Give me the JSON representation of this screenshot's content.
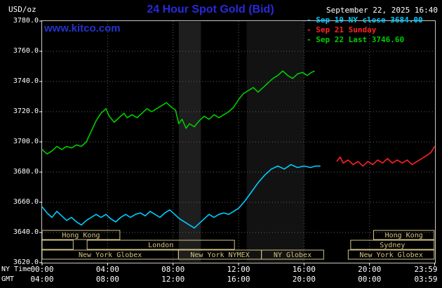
{
  "header": {
    "site": "www.kitco.com",
    "datetime": "September 22, 2025 16:40"
  },
  "chart_data": {
    "type": "line",
    "title": "24 Hour Spot Gold (Bid)",
    "ylabel": "USD/oz",
    "ylim": [
      3620,
      3780
    ],
    "ytick_step": 20,
    "x_hours": [
      0,
      24
    ],
    "grid_hours": [
      4,
      8,
      12,
      16,
      20
    ],
    "x_row_names": [
      "NY Time",
      "GMT"
    ],
    "xticks": [
      {
        "h": 0,
        "ny": "00:00",
        "gmt": "04:00"
      },
      {
        "h": 4,
        "ny": "04:00",
        "gmt": "08:00"
      },
      {
        "h": 8,
        "ny": "08:00",
        "gmt": "12:00"
      },
      {
        "h": 12,
        "ny": "12:00",
        "gmt": "16:00"
      },
      {
        "h": 16,
        "ny": "16:00",
        "gmt": "20:00"
      },
      {
        "h": 20,
        "ny": "20:00",
        "gmt": "00:00"
      },
      {
        "h": 23.98,
        "ny": "23:59",
        "gmt": "03:59"
      }
    ],
    "legend": [
      {
        "text": "- Sep 19 NY close 3684.00",
        "color": "#00ccff"
      },
      {
        "text": "- Sep 21 Sunday",
        "color": "#ff2222"
      },
      {
        "text": "- Sep 22 Last 3746.60",
        "color": "#00cc00"
      }
    ],
    "colors": {
      "grid": "#606060",
      "border": "#c8c8c8",
      "session": "#d2c284",
      "background": "#000000",
      "title_blue": "#2929dd"
    },
    "shaded_bands": [
      {
        "start": 8.35,
        "end": 9.7,
        "color": "#1e1e1e"
      },
      {
        "start": 12.5,
        "end": 16.0,
        "color": "#121212"
      }
    ],
    "sessions": [
      {
        "row": 0,
        "start": 0,
        "end": 4.75,
        "label": "Hong Kong"
      },
      {
        "row": 0,
        "start": 20.25,
        "end": 23.95,
        "label": "Hong Kong"
      },
      {
        "row": 1,
        "start": 0,
        "end": 1.9,
        "label": ""
      },
      {
        "row": 1,
        "start": 2.75,
        "end": 11.75,
        "label": "London"
      },
      {
        "row": 1,
        "start": 18.85,
        "end": 23.95,
        "label": "Sydney"
      },
      {
        "row": 2,
        "start": 0,
        "end": 8.33,
        "label": "New York Globex"
      },
      {
        "row": 2,
        "start": 8.33,
        "end": 13.4,
        "label": "New York NYMEX"
      },
      {
        "row": 2,
        "start": 13.4,
        "end": 17.2,
        "label": "NY Globex"
      },
      {
        "row": 2,
        "start": 18.7,
        "end": 23.95,
        "label": "New York Globex"
      }
    ],
    "series": [
      {
        "name": "Sep 19 NY close",
        "color": "#00ccff",
        "close": 3684.0,
        "points": [
          [
            0,
            3657
          ],
          [
            0.3,
            3653
          ],
          [
            0.6,
            3650
          ],
          [
            0.9,
            3654
          ],
          [
            1.2,
            3651
          ],
          [
            1.5,
            3648
          ],
          [
            1.8,
            3650
          ],
          [
            2.1,
            3647
          ],
          [
            2.4,
            3645
          ],
          [
            2.7,
            3648
          ],
          [
            3.0,
            3650
          ],
          [
            3.3,
            3652
          ],
          [
            3.6,
            3650
          ],
          [
            3.9,
            3652
          ],
          [
            4.2,
            3649
          ],
          [
            4.5,
            3647
          ],
          [
            4.8,
            3650
          ],
          [
            5.1,
            3652
          ],
          [
            5.4,
            3650
          ],
          [
            5.7,
            3652
          ],
          [
            6.0,
            3653
          ],
          [
            6.3,
            3651
          ],
          [
            6.6,
            3654
          ],
          [
            6.9,
            3652
          ],
          [
            7.2,
            3650
          ],
          [
            7.5,
            3653
          ],
          [
            7.8,
            3655
          ],
          [
            8.1,
            3652
          ],
          [
            8.4,
            3649
          ],
          [
            8.7,
            3647
          ],
          [
            9.0,
            3645
          ],
          [
            9.3,
            3643
          ],
          [
            9.6,
            3646
          ],
          [
            9.9,
            3649
          ],
          [
            10.2,
            3652
          ],
          [
            10.5,
            3650
          ],
          [
            10.8,
            3652
          ],
          [
            11.1,
            3653
          ],
          [
            11.4,
            3652
          ],
          [
            11.7,
            3654
          ],
          [
            12.0,
            3656
          ],
          [
            12.4,
            3661
          ],
          [
            12.8,
            3667
          ],
          [
            13.2,
            3673
          ],
          [
            13.6,
            3678
          ],
          [
            14.0,
            3682
          ],
          [
            14.4,
            3684
          ],
          [
            14.8,
            3682
          ],
          [
            15.2,
            3685
          ],
          [
            15.6,
            3683
          ],
          [
            16.0,
            3684
          ],
          [
            16.4,
            3683
          ],
          [
            16.7,
            3684
          ],
          [
            17.0,
            3684
          ]
        ]
      },
      {
        "name": "Sep 21 Sunday",
        "color": "#ff2222",
        "points": [
          [
            18.0,
            3687
          ],
          [
            18.2,
            3690
          ],
          [
            18.4,
            3686
          ],
          [
            18.7,
            3688
          ],
          [
            19.0,
            3685
          ],
          [
            19.3,
            3687
          ],
          [
            19.6,
            3684
          ],
          [
            19.9,
            3687
          ],
          [
            20.2,
            3685
          ],
          [
            20.5,
            3688
          ],
          [
            20.8,
            3686
          ],
          [
            21.1,
            3689
          ],
          [
            21.4,
            3686
          ],
          [
            21.7,
            3688
          ],
          [
            22.0,
            3686
          ],
          [
            22.3,
            3688
          ],
          [
            22.6,
            3685
          ],
          [
            22.9,
            3687
          ],
          [
            23.2,
            3689
          ],
          [
            23.5,
            3691
          ],
          [
            23.75,
            3693
          ],
          [
            23.98,
            3697
          ]
        ]
      },
      {
        "name": "Sep 22 Last",
        "color": "#00cc00",
        "last": 3746.6,
        "points": [
          [
            0,
            3695
          ],
          [
            0.3,
            3692
          ],
          [
            0.6,
            3694
          ],
          [
            0.9,
            3697
          ],
          [
            1.2,
            3695
          ],
          [
            1.5,
            3697
          ],
          [
            1.8,
            3696
          ],
          [
            2.1,
            3698
          ],
          [
            2.4,
            3697
          ],
          [
            2.7,
            3700
          ],
          [
            3.0,
            3707
          ],
          [
            3.3,
            3714
          ],
          [
            3.6,
            3719
          ],
          [
            3.9,
            3722
          ],
          [
            4.1,
            3717
          ],
          [
            4.4,
            3713
          ],
          [
            4.7,
            3716
          ],
          [
            5.0,
            3719
          ],
          [
            5.2,
            3716
          ],
          [
            5.5,
            3718
          ],
          [
            5.8,
            3716
          ],
          [
            6.1,
            3719
          ],
          [
            6.4,
            3722
          ],
          [
            6.7,
            3720
          ],
          [
            7.0,
            3722
          ],
          [
            7.3,
            3724
          ],
          [
            7.6,
            3726
          ],
          [
            7.9,
            3723
          ],
          [
            8.15,
            3721
          ],
          [
            8.35,
            3712
          ],
          [
            8.55,
            3715
          ],
          [
            8.8,
            3709
          ],
          [
            9.0,
            3712
          ],
          [
            9.3,
            3710
          ],
          [
            9.6,
            3714
          ],
          [
            9.9,
            3717
          ],
          [
            10.2,
            3715
          ],
          [
            10.5,
            3718
          ],
          [
            10.8,
            3716
          ],
          [
            11.1,
            3718
          ],
          [
            11.4,
            3720
          ],
          [
            11.7,
            3723
          ],
          [
            12.0,
            3728
          ],
          [
            12.3,
            3732
          ],
          [
            12.6,
            3734
          ],
          [
            12.9,
            3736
          ],
          [
            13.2,
            3733
          ],
          [
            13.5,
            3736
          ],
          [
            13.8,
            3739
          ],
          [
            14.1,
            3742
          ],
          [
            14.4,
            3744
          ],
          [
            14.7,
            3747
          ],
          [
            15.0,
            3744
          ],
          [
            15.3,
            3742
          ],
          [
            15.6,
            3745
          ],
          [
            15.9,
            3746
          ],
          [
            16.2,
            3744
          ],
          [
            16.45,
            3746
          ],
          [
            16.65,
            3747
          ]
        ]
      }
    ]
  }
}
